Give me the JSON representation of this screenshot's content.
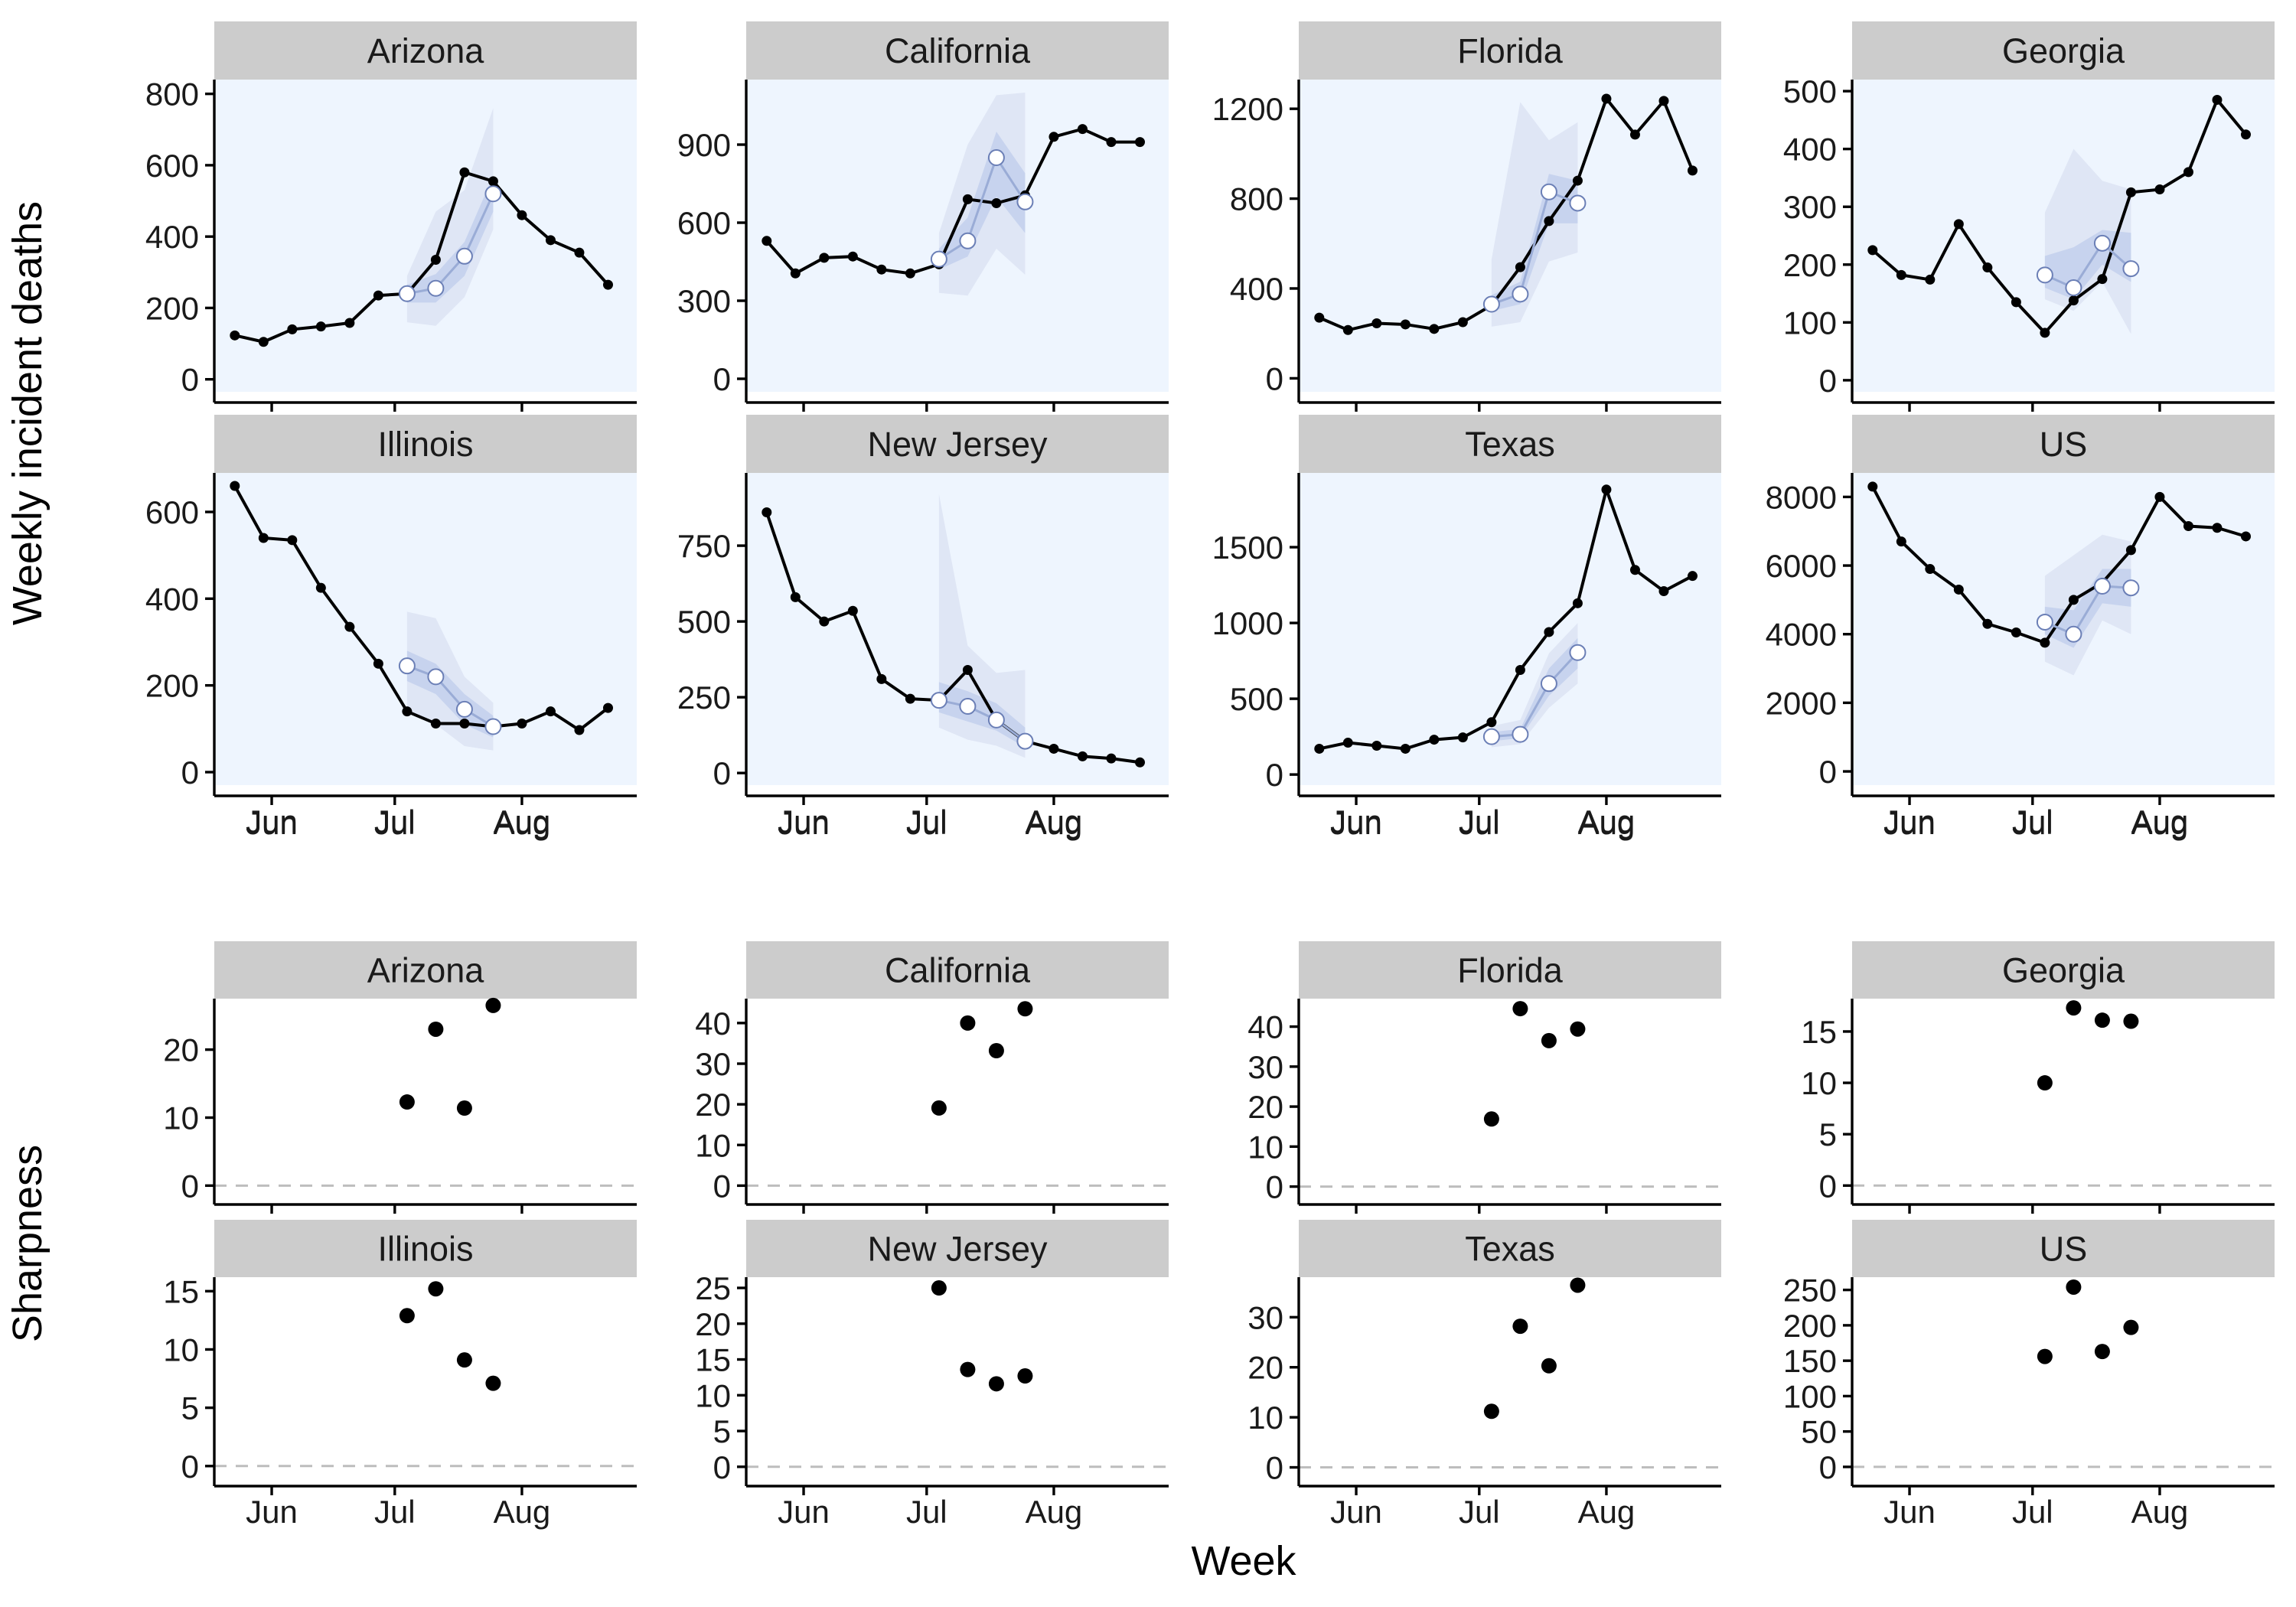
{
  "figure": {
    "ylabel_top": "Weekly incident deaths",
    "ylabel_bottom": "Sharpness",
    "xlabel": "Week"
  },
  "colors": {
    "panel_bg": "#eef5fe",
    "band_outer": "#dfe6f5",
    "band_inner": "#c7d3ee",
    "forecast_line": "#9aacd6",
    "forecast_point_edge": "#6b7fb6",
    "observed": "#000000",
    "zero_line": "#bdbdbd",
    "strip": "#cccccc"
  },
  "chart_data": {
    "type": "line",
    "x_axis": {
      "ticks": [
        "Jun",
        "Jul",
        "Aug"
      ],
      "tick_positions": [
        "2020-06-01",
        "2020-07-01",
        "2020-08-01"
      ],
      "range": [
        "2020-05-18",
        "2020-08-29"
      ]
    },
    "observed_weeks": [
      "2020-05-23",
      "2020-05-30",
      "2020-06-06",
      "2020-06-13",
      "2020-06-20",
      "2020-06-27",
      "2020-07-04",
      "2020-07-11",
      "2020-07-18",
      "2020-07-25",
      "2020-08-01",
      "2020-08-08",
      "2020-08-15",
      "2020-08-22"
    ],
    "forecast_weeks": [
      "2020-07-04",
      "2020-07-11",
      "2020-07-18",
      "2020-07-25"
    ],
    "deaths_panels": [
      {
        "state": "Arizona",
        "yticks": [
          0,
          200,
          400,
          600,
          800
        ],
        "ylim": [
          -35,
          840
        ],
        "observed": [
          123,
          105,
          140,
          148,
          158,
          235,
          240,
          335,
          580,
          555,
          460,
          390,
          355,
          265
        ],
        "forecast_median": [
          240,
          255,
          345,
          520
        ],
        "pi50_lower": [
          215,
          215,
          290,
          470
        ],
        "pi50_upper": [
          265,
          295,
          385,
          570
        ],
        "pi90_lower": [
          160,
          150,
          230,
          420
        ],
        "pi90_upper": [
          290,
          470,
          530,
          760
        ]
      },
      {
        "state": "California",
        "yticks": [
          0,
          300,
          600,
          900
        ],
        "ylim": [
          -50,
          1150
        ],
        "observed": [
          530,
          405,
          465,
          470,
          420,
          405,
          440,
          690,
          675,
          705,
          930,
          960,
          910,
          910
        ],
        "forecast_median": [
          460,
          530,
          850,
          680
        ],
        "pi50_lower": [
          420,
          470,
          700,
          560
        ],
        "pi50_upper": [
          500,
          620,
          950,
          790
        ],
        "pi90_lower": [
          330,
          320,
          500,
          400
        ],
        "pi90_upper": [
          560,
          900,
          1090,
          1100
        ]
      },
      {
        "state": "Florida",
        "yticks": [
          0,
          400,
          800,
          1200
        ],
        "ylim": [
          -60,
          1330
        ],
        "observed": [
          270,
          215,
          245,
          240,
          220,
          250,
          325,
          495,
          700,
          880,
          1245,
          1085,
          1235,
          925
        ],
        "forecast_median": [
          330,
          375,
          830,
          780
        ],
        "pi50_lower": [
          300,
          330,
          690,
          690
        ],
        "pi50_upper": [
          370,
          430,
          910,
          880
        ],
        "pi90_lower": [
          230,
          250,
          520,
          560
        ],
        "pi90_upper": [
          530,
          1230,
          1060,
          1140
        ]
      },
      {
        "state": "Georgia",
        "yticks": [
          0,
          100,
          200,
          300,
          400,
          500
        ],
        "ylim": [
          -20,
          520
        ],
        "observed": [
          225,
          182,
          174,
          270,
          195,
          135,
          82,
          138,
          175,
          325,
          330,
          360,
          485,
          425
        ],
        "forecast_median": [
          182,
          160,
          237,
          193
        ],
        "pi50_lower": [
          160,
          140,
          200,
          170
        ],
        "pi50_upper": [
          215,
          230,
          260,
          255
        ],
        "pi90_lower": [
          140,
          120,
          170,
          80
        ],
        "pi90_upper": [
          290,
          400,
          345,
          330
        ]
      },
      {
        "state": "Illinois",
        "yticks": [
          0,
          200,
          400,
          600
        ],
        "ylim": [
          -30,
          690
        ],
        "observed": [
          660,
          540,
          535,
          425,
          335,
          250,
          140,
          112,
          112,
          105,
          112,
          140,
          97,
          148
        ],
        "forecast_median": [
          245,
          220,
          145,
          105
        ],
        "pi50_lower": [
          210,
          180,
          110,
          80
        ],
        "pi50_upper": [
          280,
          250,
          180,
          130
        ],
        "pi90_lower": [
          140,
          110,
          60,
          50
        ],
        "pi90_upper": [
          370,
          355,
          220,
          160
        ]
      },
      {
        "state": "New Jersey",
        "yticks": [
          0,
          250,
          500,
          750
        ],
        "ylim": [
          -40,
          990
        ],
        "observed": [
          860,
          580,
          500,
          535,
          310,
          245,
          240,
          340,
          175,
          105,
          80,
          55,
          48,
          35
        ],
        "forecast_median": [
          240,
          220,
          175,
          105
        ],
        "pi50_lower": [
          200,
          170,
          140,
          85
        ],
        "pi50_upper": [
          300,
          270,
          230,
          150
        ],
        "pi90_lower": [
          150,
          110,
          90,
          50
        ],
        "pi90_upper": [
          920,
          420,
          330,
          340
        ]
      },
      {
        "state": "Texas",
        "yticks": [
          0,
          500,
          1000,
          1500
        ],
        "ylim": [
          -70,
          1990
        ],
        "observed": [
          170,
          210,
          190,
          170,
          230,
          245,
          345,
          690,
          940,
          1130,
          1880,
          1350,
          1210,
          1310
        ],
        "forecast_median": [
          250,
          265,
          600,
          805
        ],
        "pi50_lower": [
          220,
          240,
          520,
          700
        ],
        "pi50_upper": [
          280,
          300,
          700,
          900
        ],
        "pi90_lower": [
          180,
          200,
          440,
          600
        ],
        "pi90_upper": [
          320,
          360,
          800,
          1000
        ]
      },
      {
        "state": "US",
        "yticks": [
          0,
          2000,
          4000,
          6000,
          8000
        ],
        "ylim": [
          -400,
          8700
        ],
        "observed": [
          8300,
          6700,
          5900,
          5300,
          4300,
          4050,
          3750,
          5000,
          5500,
          6450,
          8000,
          7150,
          7100,
          6850
        ],
        "forecast_median": [
          4350,
          4000,
          5400,
          5350
        ],
        "pi50_lower": [
          4000,
          3600,
          4900,
          4800
        ],
        "pi50_upper": [
          4800,
          4700,
          5900,
          5900
        ],
        "pi90_lower": [
          3200,
          2800,
          4400,
          4000
        ],
        "pi90_upper": [
          5700,
          6300,
          6900,
          6700
        ]
      }
    ],
    "sharpness_panels": [
      {
        "state": "Arizona",
        "yticks": [
          0,
          10,
          20
        ],
        "ylim": [
          -1.2,
          27.5
        ],
        "values": [
          12.3,
          23.0,
          11.4,
          26.5
        ]
      },
      {
        "state": "California",
        "yticks": [
          0,
          10,
          20,
          30,
          40
        ],
        "ylim": [
          -2,
          46
        ],
        "values": [
          19.1,
          40.0,
          33.2,
          43.5
        ]
      },
      {
        "state": "Florida",
        "yticks": [
          0,
          10,
          20,
          30,
          40
        ],
        "ylim": [
          -1.8,
          47
        ],
        "values": [
          16.9,
          44.5,
          36.5,
          39.4
        ]
      },
      {
        "state": "Georgia",
        "yticks": [
          0,
          5,
          10,
          15
        ],
        "ylim": [
          -0.8,
          18.2
        ],
        "values": [
          10.0,
          17.3,
          16.1,
          16.0
        ]
      },
      {
        "state": "Illinois",
        "yticks": [
          0,
          5,
          10,
          15
        ],
        "ylim": [
          -0.8,
          16.2
        ],
        "values": [
          12.9,
          15.2,
          9.1,
          7.1
        ]
      },
      {
        "state": "New Jersey",
        "yticks": [
          0,
          5,
          10,
          15,
          20,
          25
        ],
        "ylim": [
          -1.2,
          26.5
        ],
        "values": [
          25.0,
          13.6,
          11.6,
          12.7
        ]
      },
      {
        "state": "Texas",
        "yticks": [
          0,
          10,
          20,
          30
        ],
        "ylim": [
          -1.6,
          38
        ],
        "values": [
          11.2,
          28.2,
          20.3,
          36.4
        ]
      },
      {
        "state": "US",
        "yticks": [
          0,
          50,
          100,
          150,
          200,
          250
        ],
        "ylim": [
          -12,
          268
        ],
        "values": [
          156,
          254,
          163,
          197
        ]
      }
    ]
  }
}
